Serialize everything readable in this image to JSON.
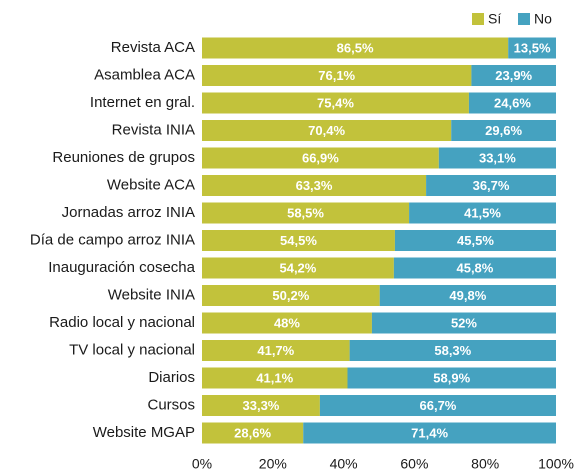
{
  "chart_data": {
    "type": "stacked-barh",
    "categories": [
      "Revista ACA",
      "Asamblea ACA",
      "Internet en gral.",
      "Revista INIA",
      "Reuniones de grupos",
      "Website ACA",
      "Jornadas arroz INIA",
      "Día de campo arroz INIA",
      "Inauguración cosecha",
      "Website INIA",
      "Radio local y nacional",
      "TV local y nacional",
      "Diarios",
      "Cursos",
      "Website MGAP"
    ],
    "series": [
      {
        "name": "Sí",
        "color": "#c2c23b",
        "values": [
          86.5,
          76.1,
          75.4,
          70.4,
          66.9,
          63.3,
          58.5,
          54.5,
          54.2,
          50.2,
          48,
          41.7,
          41.1,
          33.3,
          28.6
        ],
        "value_labels": [
          "86,5%",
          "76,1%",
          "75,4%",
          "70,4%",
          "66,9%",
          "63,3%",
          "58,5%",
          "54,5%",
          "54,2%",
          "50,2%",
          "48%",
          "41,7%",
          "41,1%",
          "33,3%",
          "28,6%"
        ]
      },
      {
        "name": "No",
        "color": "#45a2c0",
        "values": [
          13.5,
          23.9,
          24.6,
          29.6,
          33.1,
          36.7,
          41.5,
          45.5,
          45.8,
          49.8,
          52,
          58.3,
          58.9,
          66.7,
          71.4
        ],
        "value_labels": [
          "13,5%",
          "23,9%",
          "24,6%",
          "29,6%",
          "33,1%",
          "36,7%",
          "41,5%",
          "45,5%",
          "45,8%",
          "49,8%",
          "52%",
          "58,3%",
          "58,9%",
          "66,7%",
          "71,4%"
        ]
      }
    ],
    "xlim": [
      0,
      100
    ],
    "xticks": [
      {
        "value": 0,
        "label": "0%"
      },
      {
        "value": 20,
        "label": "20%"
      },
      {
        "value": 40,
        "label": "40%"
      },
      {
        "value": 60,
        "label": "60%"
      },
      {
        "value": 80,
        "label": "80%"
      },
      {
        "value": 100,
        "label": "100%"
      }
    ],
    "grid": false,
    "legend": "top-right"
  }
}
